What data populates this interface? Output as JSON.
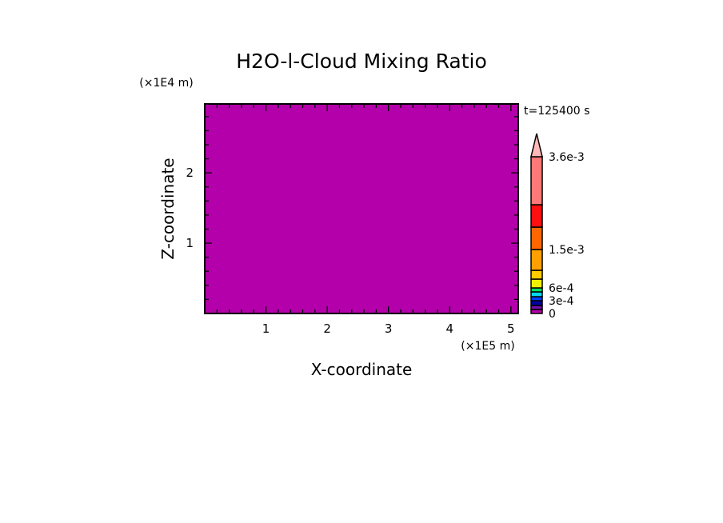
{
  "chart_data": {
    "type": "heatmap",
    "title": "H2O-l-Cloud Mixing Ratio",
    "xlabel": "X-coordinate",
    "ylabel": "Z-coordinate",
    "x_unit": "(×1E5 m)",
    "y_unit": "(×1E4 m)",
    "time_label": "t=125400 s",
    "xlim": [
      0,
      5.12
    ],
    "ylim": [
      0,
      2.98
    ],
    "x_ticks": [
      "1",
      "2",
      "3",
      "4",
      "5"
    ],
    "x_tick_values": [
      1,
      2,
      3,
      4,
      5
    ],
    "y_ticks": [
      "1",
      "2"
    ],
    "y_tick_values": [
      1,
      2
    ],
    "minor_tick_step": 0.2,
    "grid": false,
    "field_value": 0,
    "field_color": "#b400aa",
    "colorbar": {
      "levels": [
        0,
        0.0001,
        0.0002,
        0.0003,
        0.0004,
        0.0005,
        0.0006,
        0.0009,
        0.0012,
        0.0015,
        0.0021,
        0.0027,
        0.0036
      ],
      "colors": [
        "#b400aa",
        "#7010a8",
        "#0000a0",
        "#0040ff",
        "#00d8f0",
        "#00e060",
        "#f0f000",
        "#ffcc00",
        "#ffa000",
        "#ff6600",
        "#ff1010",
        "#ff7878"
      ],
      "extend_max_color": "#ffb8b8",
      "labels": [
        "0",
        "3e-4",
        "6e-4",
        "1.5e-3",
        "3.6e-3"
      ],
      "label_values": [
        0,
        0.0003,
        0.0006,
        0.0015,
        0.0036
      ]
    }
  }
}
